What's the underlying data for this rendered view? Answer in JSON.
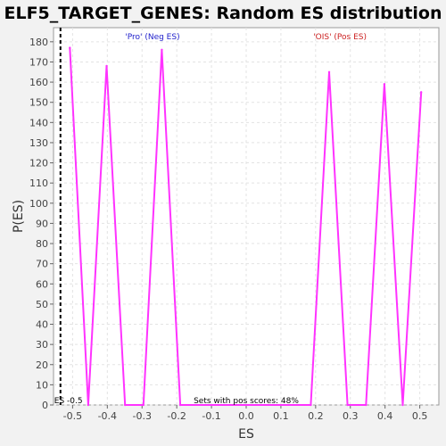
{
  "chart_data": {
    "type": "line",
    "title": "ELF5_TARGET_GENES: Random ES distribution",
    "xlabel": "ES",
    "ylabel": "P(ES)",
    "xlim": [
      -0.555,
      0.555
    ],
    "ylim": [
      0,
      187
    ],
    "x_ticks": [
      "-0.5",
      "-0.4",
      "-0.3",
      "-0.2",
      "-0.1",
      "0.0",
      "0.1",
      "0.2",
      "0.3",
      "0.4",
      "0.5"
    ],
    "x_tick_values": [
      -0.5,
      -0.4,
      -0.3,
      -0.2,
      -0.1,
      0.0,
      0.1,
      0.2,
      0.3,
      0.4,
      0.5
    ],
    "y_ticks": [
      "0",
      "10",
      "20",
      "30",
      "40",
      "50",
      "60",
      "70",
      "80",
      "90",
      "100",
      "110",
      "120",
      "130",
      "140",
      "150",
      "160",
      "170",
      "180"
    ],
    "y_tick_values": [
      0,
      10,
      20,
      30,
      40,
      50,
      60,
      70,
      80,
      90,
      100,
      110,
      120,
      130,
      140,
      150,
      160,
      170,
      180
    ],
    "grid": true,
    "series": [
      {
        "color": "#ff33ff",
        "x": [
          -0.508,
          -0.455,
          -0.402,
          -0.349,
          -0.296,
          -0.243,
          -0.19,
          0.186,
          0.239,
          0.292,
          0.345,
          0.398,
          0.451,
          0.504
        ],
        "y": [
          177,
          0,
          168,
          0,
          0,
          176,
          0,
          0,
          165,
          0,
          0,
          159,
          0,
          155
        ]
      }
    ],
    "actual_es": {
      "label": "ES -0.5",
      "x": -0.535
    },
    "annotations": {
      "neg_label": "'Pro' (Neg ES)",
      "pos_label": "'OIS' (Pos ES)",
      "sets_label": "Sets with pos scores: 48%"
    },
    "colors": {
      "line": "#ff33ff",
      "neg_label": "#2222cc",
      "pos_label": "#cc2222"
    }
  }
}
